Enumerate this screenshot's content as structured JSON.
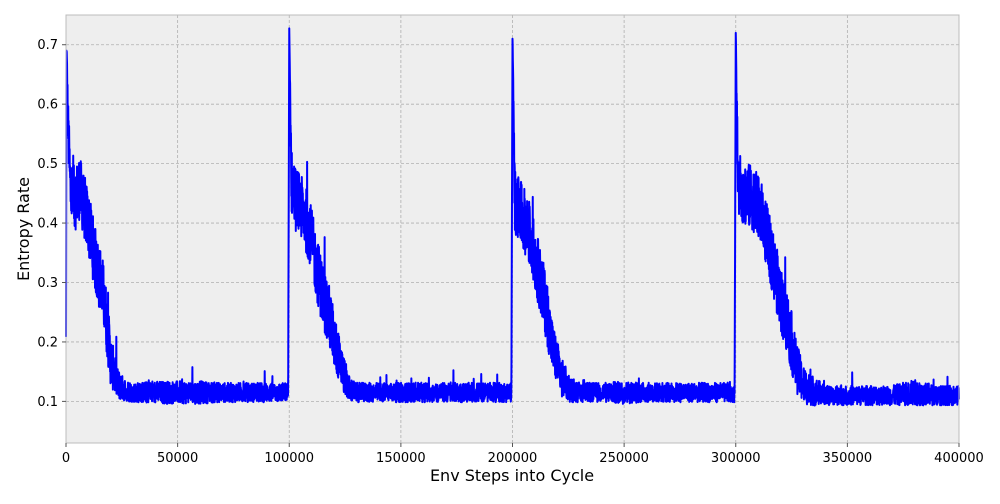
{
  "chart_data": {
    "type": "line",
    "title": "",
    "xlabel": "Env Steps into Cycle",
    "ylabel": "Entropy Rate",
    "xlim": [
      0,
      400000
    ],
    "ylim": [
      0.03,
      0.75
    ],
    "x_ticks": [
      0,
      50000,
      100000,
      150000,
      200000,
      250000,
      300000,
      350000,
      400000
    ],
    "x_tick_labels": [
      "0",
      "50000",
      "100000",
      "150000",
      "200000",
      "250000",
      "300000",
      "350000",
      "400000"
    ],
    "y_ticks": [
      0.1,
      0.2,
      0.3,
      0.4,
      0.5,
      0.6,
      0.7
    ],
    "y_tick_labels": [
      "0.1",
      "0.2",
      "0.3",
      "0.4",
      "0.5",
      "0.6",
      "0.7"
    ],
    "grid": true,
    "legend": "none",
    "colors": {
      "line": "#0000ff",
      "plot_background": "#eeeeee",
      "grid": "#b0b0b0",
      "frame": "#bcbcbc"
    },
    "series": [
      {
        "x": [
          0,
          200,
          800,
          2000,
          4000,
          6000,
          8000,
          10000,
          12000,
          14000,
          16000,
          18000,
          20000,
          23000,
          26000,
          30000,
          40000,
          50000,
          60000,
          70000,
          80000,
          90000,
          99500,
          100000,
          101000,
          103000,
          106000,
          109000,
          112000,
          115000,
          118000,
          121000,
          124000,
          127000,
          130000,
          140000,
          150000,
          160000,
          170000,
          180000,
          190000,
          199500,
          200000,
          201000,
          203000,
          206000,
          209000,
          212000,
          215000,
          218000,
          222000,
          226000,
          230000,
          240000,
          250000,
          260000,
          270000,
          280000,
          290000,
          299500,
          300000,
          301000,
          304000,
          308000,
          312000,
          315000,
          318000,
          321000,
          324000,
          327000,
          330000,
          333000,
          337000,
          340000,
          350000,
          360000,
          370000,
          380000,
          390000,
          400000
        ],
        "y": [
          0.2,
          0.69,
          0.58,
          0.45,
          0.44,
          0.46,
          0.43,
          0.4,
          0.36,
          0.32,
          0.3,
          0.24,
          0.17,
          0.13,
          0.12,
          0.115,
          0.115,
          0.115,
          0.115,
          0.115,
          0.115,
          0.115,
          0.115,
          0.72,
          0.47,
          0.44,
          0.42,
          0.39,
          0.33,
          0.28,
          0.24,
          0.19,
          0.15,
          0.12,
          0.115,
          0.115,
          0.115,
          0.115,
          0.115,
          0.115,
          0.115,
          0.115,
          0.71,
          0.44,
          0.42,
          0.4,
          0.36,
          0.31,
          0.26,
          0.19,
          0.14,
          0.12,
          0.115,
          0.115,
          0.115,
          0.115,
          0.115,
          0.115,
          0.115,
          0.115,
          0.72,
          0.46,
          0.45,
          0.44,
          0.41,
          0.36,
          0.31,
          0.26,
          0.22,
          0.16,
          0.13,
          0.12,
          0.115,
          0.11,
          0.11,
          0.11,
          0.11,
          0.115,
          0.11,
          0.11
        ],
        "noise": [
          0.05,
          0.08,
          0.08,
          0.1,
          0.1,
          0.1,
          0.1,
          0.1,
          0.1,
          0.1,
          0.1,
          0.1,
          0.08,
          0.05,
          0.035,
          0.03,
          0.035,
          0.035,
          0.035,
          0.03,
          0.03,
          0.03,
          0.03,
          0.02,
          0.1,
          0.1,
          0.1,
          0.1,
          0.1,
          0.1,
          0.1,
          0.08,
          0.06,
          0.04,
          0.03,
          0.03,
          0.03,
          0.03,
          0.03,
          0.03,
          0.03,
          0.03,
          0.02,
          0.1,
          0.1,
          0.1,
          0.1,
          0.1,
          0.1,
          0.08,
          0.06,
          0.04,
          0.03,
          0.03,
          0.035,
          0.03,
          0.03,
          0.03,
          0.03,
          0.03,
          0.02,
          0.1,
          0.1,
          0.1,
          0.1,
          0.1,
          0.1,
          0.1,
          0.1,
          0.08,
          0.06,
          0.05,
          0.04,
          0.03,
          0.03,
          0.03,
          0.03,
          0.04,
          0.03,
          0.03
        ]
      }
    ]
  }
}
